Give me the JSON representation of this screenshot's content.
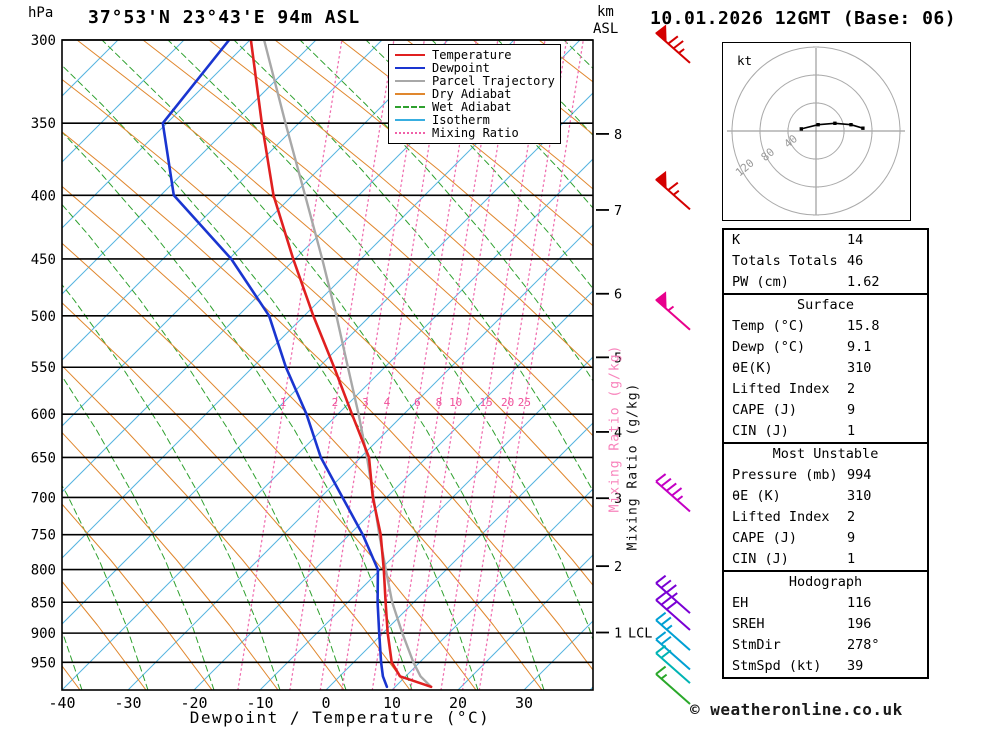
{
  "header": {
    "title": "37°53'N 23°43'E 94m ASL",
    "datetime": "10.01.2026 12GMT (Base: 06)",
    "pressure_unit": "hPa",
    "alt_unit_line1": "km",
    "alt_unit_line2": "ASL"
  },
  "legend": {
    "items": [
      {
        "label": "Temperature",
        "color": "#e02020",
        "style": "solid"
      },
      {
        "label": "Dewpoint",
        "color": "#1a35d0",
        "style": "solid"
      },
      {
        "label": "Parcel Trajectory",
        "color": "#a8a8a8",
        "style": "solid"
      },
      {
        "label": "Dry Adiabat",
        "color": "#e0872e",
        "style": "solid"
      },
      {
        "label": "Wet Adiabat",
        "color": "#2ea02e",
        "style": "dashed"
      },
      {
        "label": "Isotherm",
        "color": "#38aee0",
        "style": "solid"
      },
      {
        "label": "Mixing Ratio",
        "color": "#f060a8",
        "style": "dotted"
      }
    ]
  },
  "axes": {
    "pressure_levels": [
      300,
      350,
      400,
      450,
      500,
      550,
      600,
      650,
      700,
      750,
      800,
      850,
      900,
      950
    ],
    "temp_ticks": [
      -40,
      -30,
      -20,
      -10,
      0,
      10,
      20,
      30
    ],
    "xlabel": "Dewpoint / Temperature (°C)",
    "mixing_ratio_label_pink": "Mixing Ratio (g/kg)",
    "mixing_ratio_label_black": "Mixing Ratio (g/kg)",
    "km_ticks": [
      {
        "km": 8,
        "p": 357
      },
      {
        "km": 7,
        "p": 411
      },
      {
        "km": 6,
        "p": 480
      },
      {
        "km": 5,
        "p": 540
      },
      {
        "km": 4,
        "p": 620
      },
      {
        "km": 3,
        "p": 701
      },
      {
        "km": 2,
        "p": 795
      },
      {
        "km": 1,
        "p": 899
      }
    ],
    "lcl_label": "LCL",
    "lcl_km": 1
  },
  "chart_data": {
    "type": "line",
    "subtype": "skewt-log-p-sounding",
    "title": "37°53'N 23°43'E 94m ASL",
    "xlabel": "Dewpoint / Temperature (°C)",
    "ylabel": "hPa",
    "x_range_c": [
      -40,
      40
    ],
    "p_range_hpa": [
      300,
      1000
    ],
    "pressure_hpa": [
      994,
      975,
      950,
      900,
      850,
      800,
      750,
      700,
      650,
      600,
      550,
      500,
      450,
      400,
      350,
      300
    ],
    "series": [
      {
        "name": "Temperature",
        "values_c": [
          15.8,
          10.7,
          8.9,
          7.2,
          5.7,
          4.2,
          2.4,
          -0.2,
          -2.3,
          -6.5,
          -11.0,
          -16.1,
          -21.3,
          -26.7,
          -31.2,
          -36.0
        ]
      },
      {
        "name": "Dewpoint",
        "values_c": [
          9.1,
          8.1,
          7.3,
          5.9,
          4.5,
          3.3,
          -0.3,
          -4.8,
          -9.6,
          -13.4,
          -18.3,
          -22.8,
          -30.7,
          -41.8,
          -46.2,
          -39.3
        ]
      },
      {
        "name": "Parcel Trajectory",
        "values_c": [
          15.8,
          13.8,
          12.2,
          9.4,
          6.7,
          4.5,
          2.2,
          -0.1,
          -2.6,
          -5.5,
          -8.9,
          -12.6,
          -16.9,
          -21.9,
          -27.6,
          -34.0
        ]
      }
    ],
    "mixing_ratio_lines_g_kg": [
      1,
      2,
      3,
      4,
      6,
      8,
      10,
      15,
      20,
      25
    ],
    "wind_barbs": [
      {
        "p": 305,
        "speed_kt": 75,
        "color": "#d40000"
      },
      {
        "p": 400,
        "speed_kt": 65,
        "color": "#d40000"
      },
      {
        "p": 500,
        "speed_kt": 55,
        "color": "#e8008c"
      },
      {
        "p": 700,
        "speed_kt": 45,
        "color": "#c400c4"
      },
      {
        "p": 845,
        "speed_kt": 35,
        "color": "#7a00d4"
      },
      {
        "p": 872,
        "speed_kt": 30,
        "color": "#7a00d4"
      },
      {
        "p": 905,
        "speed_kt": 25,
        "color": "#00a0d4"
      },
      {
        "p": 938,
        "speed_kt": 20,
        "color": "#00a0d4"
      },
      {
        "p": 962,
        "speed_kt": 20,
        "color": "#00b4b4"
      },
      {
        "p": 1000,
        "speed_kt": 15,
        "color": "#2aa82a"
      }
    ]
  },
  "hodograph": {
    "unit_label": "kt",
    "ring_values_kt": [
      40,
      80,
      120
    ],
    "trace_kt": [
      [
        -21,
        -3
      ],
      [
        3,
        -9
      ],
      [
        27,
        -11
      ],
      [
        50,
        -9
      ],
      [
        67,
        -4
      ]
    ]
  },
  "stats": {
    "blocks": [
      {
        "header": null,
        "rows": [
          [
            "K",
            "14"
          ],
          [
            "Totals Totals",
            "46"
          ],
          [
            "PW (cm)",
            "1.62"
          ]
        ]
      },
      {
        "header": "Surface",
        "rows": [
          [
            "Temp (°C)",
            "15.8"
          ],
          [
            "Dewp (°C)",
            "9.1"
          ],
          [
            "θE(K)",
            "310"
          ],
          [
            "Lifted Index",
            "2"
          ],
          [
            "CAPE (J)",
            "9"
          ],
          [
            "CIN (J)",
            "1"
          ]
        ]
      },
      {
        "header": "Most Unstable",
        "rows": [
          [
            "Pressure (mb)",
            "994"
          ],
          [
            "θE (K)",
            "310"
          ],
          [
            "Lifted Index",
            "2"
          ],
          [
            "CAPE (J)",
            "9"
          ],
          [
            "CIN (J)",
            "1"
          ]
        ]
      },
      {
        "header": "Hodograph",
        "rows": [
          [
            "EH",
            "116"
          ],
          [
            "SREH",
            "196"
          ],
          [
            "StmDir",
            "278°"
          ],
          [
            "StmSpd (kt)",
            "39"
          ]
        ]
      }
    ]
  },
  "footer": {
    "copyright": "© weatheronline.co.uk"
  }
}
